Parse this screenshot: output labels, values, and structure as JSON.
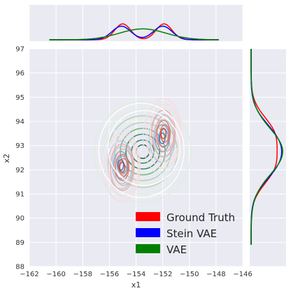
{
  "chart_data": {
    "type": "joint-kde",
    "xlabel": "x1",
    "ylabel": "x2",
    "xlim": [
      -162,
      -146
    ],
    "ylim": [
      88,
      97
    ],
    "x_ticks": [
      -162,
      -160,
      -158,
      -156,
      -154,
      -152,
      -150,
      -148,
      -146
    ],
    "y_ticks": [
      88,
      89,
      90,
      91,
      92,
      93,
      94,
      95,
      96,
      97
    ],
    "x_tick_labels": [
      "−162",
      "−160",
      "−158",
      "−156",
      "−154",
      "−152",
      "−150",
      "−148",
      "−146"
    ],
    "y_tick_labels": [
      "88",
      "89",
      "90",
      "91",
      "92",
      "93",
      "94",
      "95",
      "96",
      "97"
    ],
    "grid": true,
    "legend_placement": "lower-right",
    "series": [
      {
        "name": "Ground Truth",
        "color": "#ff0000",
        "contour_palette": [
          "#ffd9d9",
          "#f0a8a0",
          "#e07060",
          "#cc3a2a"
        ],
        "components": [
          {
            "mean": [
              -155.0,
              92.1
            ],
            "sd": [
              0.55,
              0.6
            ]
          },
          {
            "mean": [
              -151.9,
              93.5
            ],
            "sd": [
              0.55,
              0.6
            ]
          }
        ],
        "marginal_x": {
          "modes": [
            -155.0,
            -151.9
          ],
          "sd": 0.6
        },
        "marginal_y": {
          "modes": [
            92.1,
            93.5
          ],
          "sd": 0.72
        }
      },
      {
        "name": "Stein VAE",
        "color": "#0000ff",
        "contour_palette": [
          "#dde8f5",
          "#a8c8e8",
          "#6aa0d2",
          "#2f6db8"
        ],
        "components": [
          {
            "mean": [
              -155.1,
              92.2
            ],
            "sd": [
              0.6,
              0.62
            ]
          },
          {
            "mean": [
              -152.0,
              93.3
            ],
            "sd": [
              0.6,
              0.62
            ]
          }
        ],
        "marginal_x": {
          "modes": [
            -155.1,
            -152.0
          ],
          "sd": 0.7
        },
        "marginal_y": {
          "modes": [
            92.2,
            93.3
          ],
          "sd": 0.75
        }
      },
      {
        "name": "VAE",
        "color": "#008000",
        "contour_palette": [
          "#dcf0dc",
          "#a5d6a2",
          "#5fb36a",
          "#1e7d3c",
          "#0b4f26"
        ],
        "components": [
          {
            "mean": [
              -153.5,
              92.75
            ],
            "sd": [
              1.4,
              0.8
            ]
          }
        ],
        "marginal_x": {
          "modes": [
            -153.5
          ],
          "sd": 1.75
        },
        "marginal_y": {
          "modes": [
            92.75
          ],
          "sd": 0.95
        }
      }
    ]
  }
}
